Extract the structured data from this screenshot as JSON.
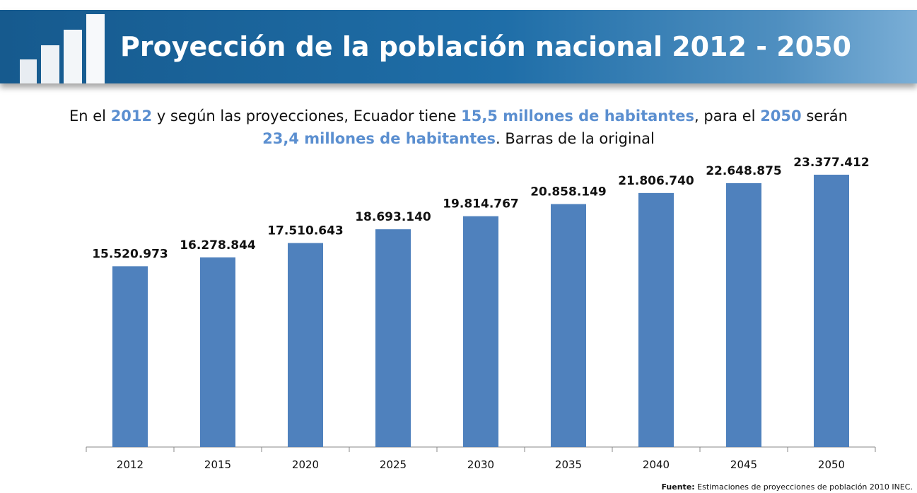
{
  "header": {
    "title": "Proyección de la población nacional 2012 - 2050"
  },
  "subtitle": {
    "lines": [
      [
        {
          "text": "En el ",
          "emphasis": false
        },
        {
          "text": "2012",
          "emphasis": true
        },
        {
          "text": " y según las proyecciones, Ecuador tiene ",
          "emphasis": false
        },
        {
          "text": "15,5 millones de habitantes",
          "emphasis": true
        },
        {
          "text": ", para el ",
          "emphasis": false
        },
        {
          "text": "2050",
          "emphasis": true
        },
        {
          "text": " serán",
          "emphasis": false
        }
      ],
      [
        {
          "text": "23,4 millones de habitantes",
          "emphasis": true
        },
        {
          "text": ". Barras de la original",
          "emphasis": false
        }
      ]
    ]
  },
  "chart_data": {
    "type": "bar",
    "categories": [
      "2012",
      "2015",
      "2020",
      "2025",
      "2030",
      "2035",
      "2040",
      "2045",
      "2050"
    ],
    "values": [
      15520973,
      16278844,
      17510643,
      18693140,
      19814767,
      20858149,
      21806740,
      22648875,
      23377412
    ],
    "value_labels": [
      "15.520.973",
      "16.278.844",
      "17.510.643",
      "18.693.140",
      "19.814.767",
      "20.858.149",
      "21.806.740",
      "22.648.875",
      "23.377.412"
    ],
    "color": "#4f81bd"
  },
  "footer": {
    "label": "Fuente:",
    "text": " Estimaciones de proyecciones de población 2010 INEC."
  }
}
